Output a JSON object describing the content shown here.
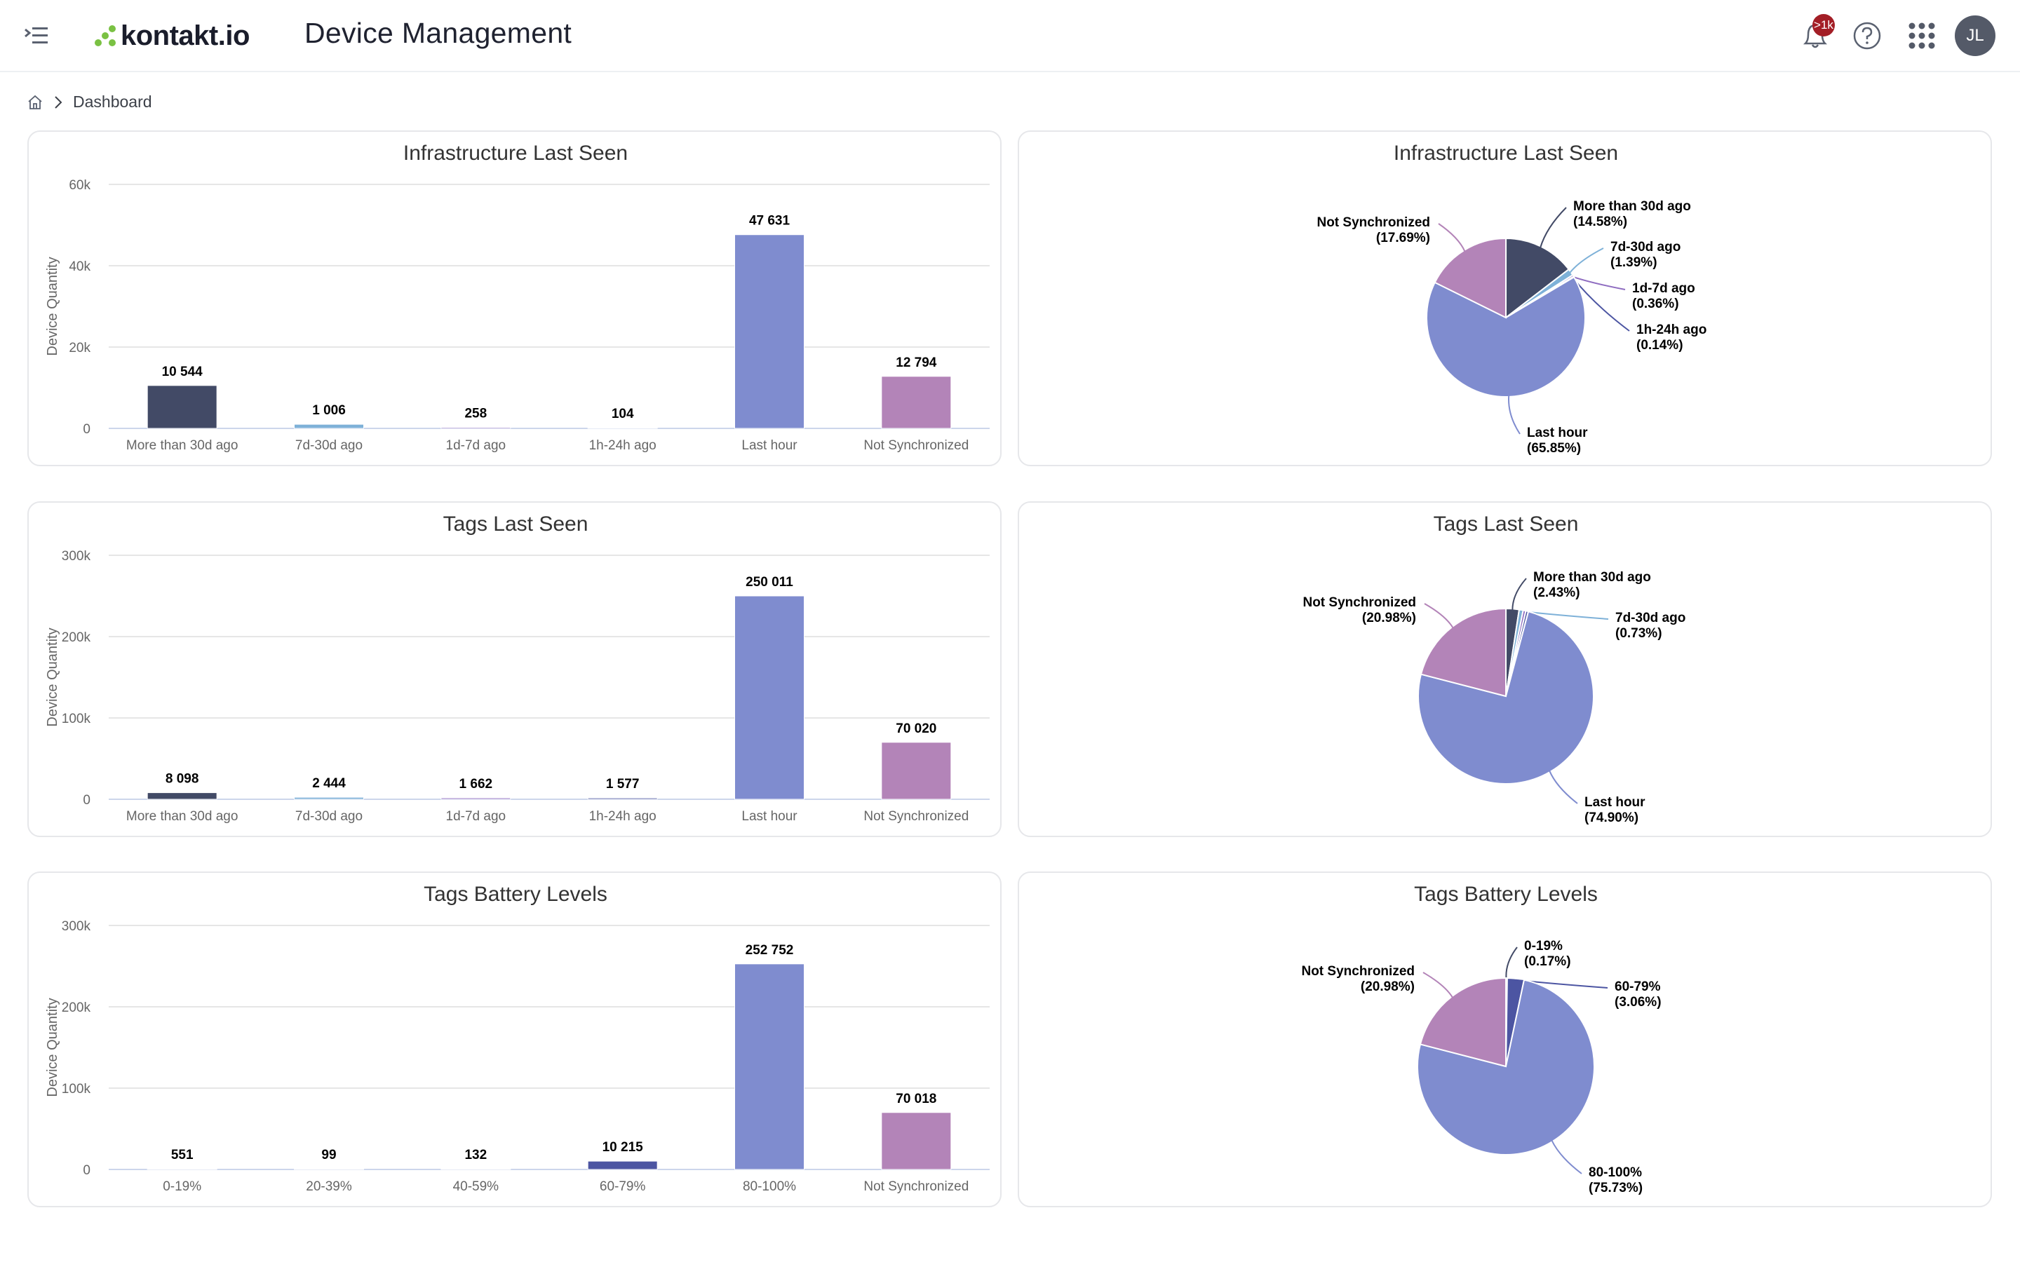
{
  "header": {
    "brand": "kontakt.io",
    "app_title": "Device Management",
    "notification_badge": ">1k",
    "avatar_initials": "JL",
    "icons": [
      "menu-collapse-icon",
      "bell-icon",
      "help-icon",
      "apps-grid-icon"
    ],
    "brand_color": "#7ac143",
    "badge_color": "#a31e26"
  },
  "breadcrumb": {
    "home_icon": "home-icon",
    "items": [
      "Dashboard"
    ]
  },
  "colors": {
    "more_than_30d": "#424a66",
    "d7_30d": "#7eb1d8",
    "d1_7d": "#8e6cc0",
    "h1_24h": "#4c55a2",
    "last_hour": "#7f8ccf",
    "not_sync": "#b384b8"
  },
  "chart_data": [
    {
      "id": "infra-bar",
      "type": "bar",
      "title": "Infrastructure Last Seen",
      "ylabel": "Device Quantity",
      "ylim": [
        0,
        60000
      ],
      "yticks": [
        "0",
        "20k",
        "40k",
        "60k"
      ],
      "ytick_values": [
        0,
        20000,
        40000,
        60000
      ],
      "grid": true,
      "categories": [
        "More than 30d ago",
        "7d-30d ago",
        "1d-7d ago",
        "1h-24h ago",
        "Last hour",
        "Not Synchronized"
      ],
      "values": [
        10544,
        1006,
        258,
        104,
        47631,
        12794
      ],
      "labels": [
        "10 544",
        "1 006",
        "258",
        "104",
        "47 631",
        "12 794"
      ],
      "colors": [
        "#424a66",
        "#7eb1d8",
        "#8e6cc0",
        "#4c55a2",
        "#7f8ccf",
        "#b384b8"
      ]
    },
    {
      "id": "infra-pie",
      "type": "pie",
      "title": "Infrastructure Last Seen",
      "slices": [
        {
          "name": "More than 30d ago",
          "percent": 14.58,
          "label": "(14.58%)",
          "color": "#424a66"
        },
        {
          "name": "7d-30d ago",
          "percent": 1.39,
          "label": "(1.39%)",
          "color": "#7eb1d8"
        },
        {
          "name": "1d-7d ago",
          "percent": 0.36,
          "label": "(0.36%)",
          "color": "#8e6cc0"
        },
        {
          "name": "1h-24h ago",
          "percent": 0.14,
          "label": "(0.14%)",
          "color": "#4c55a2"
        },
        {
          "name": "Last hour",
          "percent": 65.85,
          "label": "(65.85%)",
          "color": "#7f8ccf"
        },
        {
          "name": "Not Synchronized",
          "percent": 17.69,
          "label": "(17.69%)",
          "color": "#b384b8"
        }
      ]
    },
    {
      "id": "tags-bar",
      "type": "bar",
      "title": "Tags Last Seen",
      "ylabel": "Device Quantity",
      "ylim": [
        0,
        300000
      ],
      "yticks": [
        "0",
        "100k",
        "200k",
        "300k"
      ],
      "ytick_values": [
        0,
        100000,
        200000,
        300000
      ],
      "grid": true,
      "categories": [
        "More than 30d ago",
        "7d-30d ago",
        "1d-7d ago",
        "1h-24h ago",
        "Last hour",
        "Not Synchronized"
      ],
      "values": [
        8098,
        2444,
        1662,
        1577,
        250011,
        70020
      ],
      "labels": [
        "8 098",
        "2 444",
        "1 662",
        "1 577",
        "250 011",
        "70 020"
      ],
      "colors": [
        "#424a66",
        "#7eb1d8",
        "#8e6cc0",
        "#4c55a2",
        "#7f8ccf",
        "#b384b8"
      ]
    },
    {
      "id": "tags-pie",
      "type": "pie",
      "title": "Tags Last Seen",
      "slices": [
        {
          "name": "More than 30d ago",
          "percent": 2.43,
          "label": "(2.43%)",
          "color": "#424a66"
        },
        {
          "name": "7d-30d ago",
          "percent": 0.73,
          "label": "(0.73%)",
          "color": "#7eb1d8"
        },
        {
          "name": "",
          "percent": 0.5,
          "label": "",
          "color": "#8e6cc0"
        },
        {
          "name": "",
          "percent": 0.47,
          "label": "",
          "color": "#4c55a2"
        },
        {
          "name": "Last hour",
          "percent": 74.9,
          "label": "(74.90%)",
          "color": "#7f8ccf"
        },
        {
          "name": "Not Synchronized",
          "percent": 20.98,
          "label": "(20.98%)",
          "color": "#b384b8"
        }
      ]
    },
    {
      "id": "battery-bar",
      "type": "bar",
      "title": "Tags Battery Levels",
      "ylabel": "Device Quantity",
      "ylim": [
        0,
        300000
      ],
      "yticks": [
        "0",
        "100k",
        "200k",
        "300k"
      ],
      "ytick_values": [
        0,
        100000,
        200000,
        300000
      ],
      "grid": true,
      "categories": [
        "0-19%",
        "20-39%",
        "40-59%",
        "60-79%",
        "80-100%",
        "Not Synchronized"
      ],
      "values": [
        551,
        99,
        132,
        10215,
        252752,
        70018
      ],
      "labels": [
        "551",
        "99",
        "132",
        "10 215",
        "252 752",
        "70 018"
      ],
      "colors": [
        "#424a66",
        "#7eb1d8",
        "#8e6cc0",
        "#4c55a2",
        "#7f8ccf",
        "#b384b8"
      ]
    },
    {
      "id": "battery-pie",
      "type": "pie",
      "title": "Tags Battery Levels",
      "slices": [
        {
          "name": "0-19%",
          "percent": 0.17,
          "label": "(0.17%)",
          "color": "#424a66"
        },
        {
          "name": "",
          "percent": 0.03,
          "label": "",
          "color": "#7eb1d8"
        },
        {
          "name": "",
          "percent": 0.04,
          "label": "",
          "color": "#8e6cc0"
        },
        {
          "name": "60-79%",
          "percent": 3.06,
          "label": "(3.06%)",
          "color": "#4c55a2"
        },
        {
          "name": "80-100%",
          "percent": 75.73,
          "label": "(75.73%)",
          "color": "#7f8ccf"
        },
        {
          "name": "Not Synchronized",
          "percent": 20.98,
          "label": "(20.98%)",
          "color": "#b384b8"
        }
      ]
    }
  ]
}
